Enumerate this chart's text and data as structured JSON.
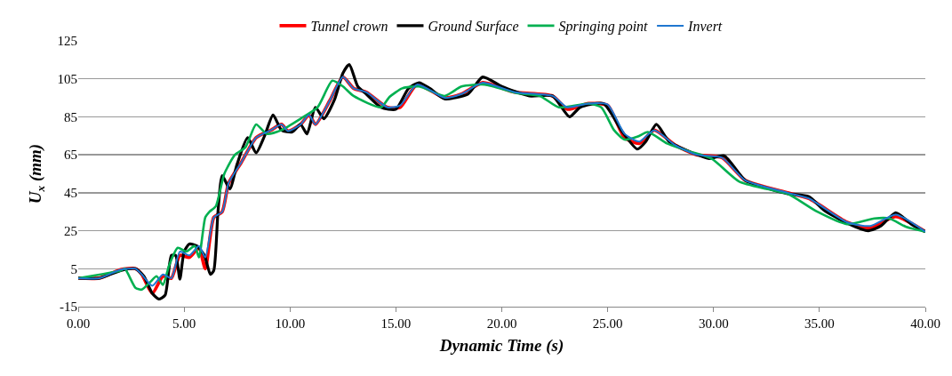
{
  "chart_data": {
    "type": "line",
    "xlabel": "Dynamic Time (s)",
    "ylabel": "U$_{x}$ (mm)",
    "xlim": [
      0,
      40
    ],
    "ylim": [
      -15,
      125
    ],
    "xticks": [
      {
        "value": 0,
        "label": "0.00"
      },
      {
        "value": 5,
        "label": "5.00"
      },
      {
        "value": 10,
        "label": "10.00"
      },
      {
        "value": 15,
        "label": "15.00"
      },
      {
        "value": 20,
        "label": "20.00"
      },
      {
        "value": 25,
        "label": "25.00"
      },
      {
        "value": 30,
        "label": "30.00"
      },
      {
        "value": 35,
        "label": "35.00"
      },
      {
        "value": 40,
        "label": "40.00"
      }
    ],
    "yticks": [
      -15,
      5,
      25,
      45,
      65,
      85,
      105,
      125
    ],
    "grid": "y",
    "legend": "top",
    "marker": "none",
    "line_style": "solid",
    "series": [
      {
        "name": "Tunnel crown",
        "color": "#ff0000",
        "x": [
          0,
          1,
          2,
          2.7,
          3.0,
          3.5,
          4.0,
          4.4,
          4.8,
          5.25,
          5.7,
          6.0,
          6.4,
          6.8,
          7.1,
          7.7,
          8.4,
          9.1,
          9.6,
          9.9,
          10.5,
          10.9,
          11.2,
          11.9,
          12.5,
          13.0,
          13.6,
          14.6,
          15.2,
          16.0,
          17.3,
          18.1,
          19.1,
          20.6,
          22.4,
          23.1,
          24.1,
          25.0,
          25.8,
          26.5,
          27.2,
          28.2,
          29.2,
          30.4,
          31.5,
          33.5,
          34.5,
          36.3,
          37.4,
          38.6,
          40
        ],
        "values": [
          0,
          0,
          4.5,
          5,
          2,
          -8,
          1,
          0,
          12,
          11,
          16,
          5,
          32,
          35,
          50,
          61,
          74,
          78,
          81,
          77.5,
          81,
          86,
          81,
          94,
          106,
          100,
          98,
          90,
          90,
          102,
          95,
          97,
          103,
          98,
          96,
          89,
          92,
          91,
          74,
          71,
          78,
          70,
          65,
          63.5,
          51.5,
          45,
          42,
          29.5,
          26.5,
          32.5,
          24.5
        ]
      },
      {
        "name": "Ground Surface",
        "color": "#000000",
        "x": [
          0,
          1,
          2,
          2.7,
          3.1,
          3.5,
          3.8,
          4.1,
          4.4,
          4.6,
          4.8,
          5.0,
          5.25,
          5.6,
          5.96,
          6.24,
          6.4,
          6.6,
          6.8,
          7.16,
          7.5,
          8.0,
          8.4,
          8.8,
          9.2,
          9.6,
          10.1,
          10.5,
          10.8,
          11.2,
          11.6,
          12.1,
          12.5,
          12.8,
          13.2,
          13.6,
          14.3,
          15.0,
          15.6,
          16.1,
          16.6,
          17.3,
          18.4,
          19.1,
          20.0,
          21.3,
          22.4,
          23.2,
          23.7,
          24.8,
          25.7,
          26.4,
          26.8,
          27.3,
          27.9,
          28.8,
          29.8,
          30.5,
          31.5,
          32.5,
          33.5,
          34.5,
          35.2,
          36.3,
          37.3,
          37.9,
          38.6,
          39.4,
          40
        ],
        "values": [
          0,
          0,
          4,
          5,
          1,
          -8,
          -11,
          -9,
          12,
          12,
          -0.5,
          14,
          18,
          17,
          12,
          2,
          4,
          35,
          54,
          47,
          60,
          74,
          66,
          75,
          86,
          78,
          77,
          81,
          76,
          90,
          84,
          94,
          108,
          112.5,
          101,
          97,
          90,
          89,
          100,
          103,
          100,
          94.5,
          97,
          106,
          101,
          96,
          96,
          85,
          90,
          92,
          77,
          68,
          72,
          81,
          72,
          67,
          63,
          64.5,
          51.5,
          47.5,
          44.5,
          43,
          36,
          29,
          25,
          27.5,
          34.5,
          28,
          24.5
        ]
      },
      {
        "name": "Springing point",
        "color": "#00b050",
        "x": [
          0,
          2,
          2.2,
          2.7,
          3.0,
          3.4,
          3.7,
          4.0,
          4.3,
          4.7,
          5.1,
          5.5,
          5.7,
          6.0,
          6.2,
          6.5,
          6.9,
          7.4,
          7.9,
          8.4,
          8.9,
          9.6,
          10.5,
          11.3,
          12.0,
          12.5,
          13.0,
          14.3,
          14.7,
          15.3,
          16.1,
          17.3,
          18.1,
          19.2,
          20.7,
          21.8,
          22.7,
          24.1,
          24.7,
          25.3,
          25.8,
          26.4,
          26.9,
          27.8,
          28.8,
          29.9,
          31.2,
          32.5,
          33.5,
          34.9,
          36.3,
          37.6,
          38.3,
          39.1,
          40
        ],
        "values": [
          0,
          4,
          5,
          -5,
          -6,
          -2,
          1,
          -3.5,
          7,
          16,
          14,
          17,
          11,
          32,
          35,
          38,
          55,
          65,
          69,
          81,
          76,
          78,
          84,
          90,
          104,
          101,
          96,
          90,
          95.5,
          100,
          101,
          96,
          101,
          102,
          97.5,
          96,
          90,
          92,
          90,
          78,
          73,
          74.5,
          77,
          71,
          67,
          63,
          51,
          47,
          44.5,
          35,
          28.5,
          31.5,
          31.5,
          27,
          24.5
        ]
      },
      {
        "name": "Invert",
        "color": "#1f77d0",
        "x": [
          0,
          1,
          2,
          2.7,
          3.0,
          3.5,
          4.0,
          4.4,
          4.8,
          5.25,
          5.7,
          6.0,
          6.4,
          6.8,
          7.1,
          7.7,
          8.4,
          9.1,
          9.6,
          9.9,
          10.5,
          10.9,
          11.2,
          11.9,
          12.5,
          13.0,
          13.6,
          14.6,
          15.2,
          16.0,
          17.3,
          18.1,
          19.1,
          20.6,
          22.4,
          23.1,
          24.1,
          25.0,
          25.8,
          26.5,
          27.2,
          28.2,
          29.2,
          30.4,
          31.5,
          33.5,
          34.5,
          36.3,
          37.4,
          38.6,
          40
        ],
        "values": [
          0,
          0,
          4.5,
          5,
          2,
          -4,
          2,
          0,
          14,
          12,
          17,
          11,
          32,
          35,
          50,
          61,
          74,
          78,
          81,
          77.5,
          81,
          86,
          81,
          94,
          106,
          100,
          98,
          90,
          91,
          102,
          95,
          97,
          103,
          98,
          96,
          90,
          92,
          91.5,
          76,
          72,
          78,
          70,
          65,
          63.5,
          51.5,
          45,
          42,
          29.5,
          27.5,
          33.5,
          24.5
        ]
      }
    ]
  }
}
